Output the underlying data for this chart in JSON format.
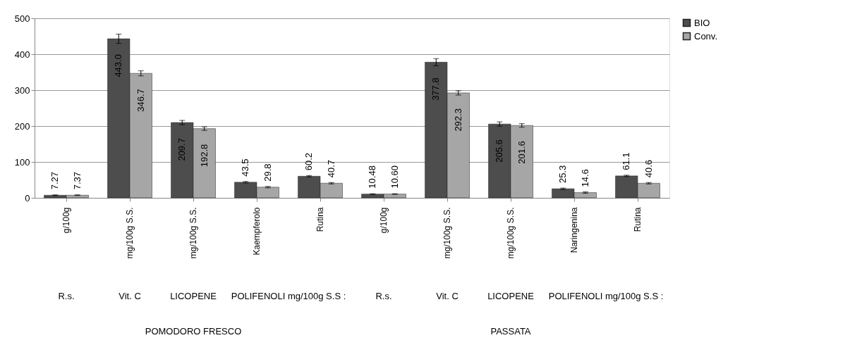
{
  "chart_data": {
    "type": "bar",
    "categories": [
      "g/100g",
      "mg/100g S.S.",
      "mg/100g S.S.",
      "Kaempferolo",
      "Rutina",
      "g/100g",
      "mg/100g S.S.",
      "mg/100g S.S.",
      "Naringenina",
      "Rutina"
    ],
    "series": [
      {
        "name": "BIO",
        "color": "#4d4d4d",
        "values": [
          7.27,
          443.0,
          209.7,
          43.5,
          60.2,
          10.48,
          377.8,
          205.6,
          25.3,
          61.1
        ],
        "value_labels": [
          "7.27",
          "443.0",
          "209.7",
          "43.5",
          "60.2",
          "10.48",
          "377.8",
          "205.6",
          "25.3",
          "61.1"
        ],
        "errors": [
          1,
          13,
          6,
          2,
          2,
          1,
          10,
          6,
          2,
          2
        ]
      },
      {
        "name": "Conv.",
        "color": "#a6a6a6",
        "values": [
          7.37,
          346.7,
          192.8,
          29.8,
          40.7,
          10.6,
          292.3,
          201.6,
          14.6,
          40.6
        ],
        "value_labels": [
          "7.37",
          "346.7",
          "192.8",
          "29.8",
          "40.7",
          "10.60",
          "292.3",
          "201.6",
          "14.6",
          "40.6"
        ],
        "errors": [
          1,
          7,
          5,
          2,
          2,
          1,
          6,
          5,
          2,
          2
        ]
      }
    ],
    "ylim": [
      0,
      500
    ],
    "yticks": [
      0,
      100,
      200,
      300,
      400,
      500
    ],
    "grid": "y",
    "legend": "right",
    "annotations": [
      "R.s.",
      "Vit. C",
      "LICOPENE",
      "POLIFENOLI mg/100g S.S :",
      "R.s.",
      "Vit. C",
      "LICOPENE",
      "POLIFENOLI mg/100g S.S :",
      "POMODORO FRESCO",
      "PASSATA"
    ]
  }
}
